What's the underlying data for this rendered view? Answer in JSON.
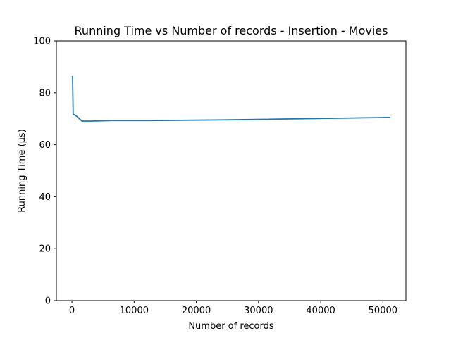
{
  "chart_data": {
    "type": "line",
    "title": "Running Time vs Number of records - Insertion - Movies",
    "xlabel": "Number of records",
    "ylabel": "Running Time (μs)",
    "xlim": [
      -2500,
      53700
    ],
    "ylim": [
      0,
      100
    ],
    "xticks": [
      0,
      10000,
      20000,
      30000,
      40000,
      50000
    ],
    "yticks": [
      0,
      20,
      40,
      60,
      80,
      100
    ],
    "grid": false,
    "series": [
      {
        "color": "#1f77b4",
        "x": [
          100,
          200,
          400,
          800,
          1600,
          3200,
          6400,
          12800,
          25600,
          51200
        ],
        "y": [
          86.5,
          71.6,
          71.5,
          70.9,
          69.1,
          69.1,
          69.3,
          69.3,
          69.6,
          70.5
        ]
      }
    ]
  }
}
